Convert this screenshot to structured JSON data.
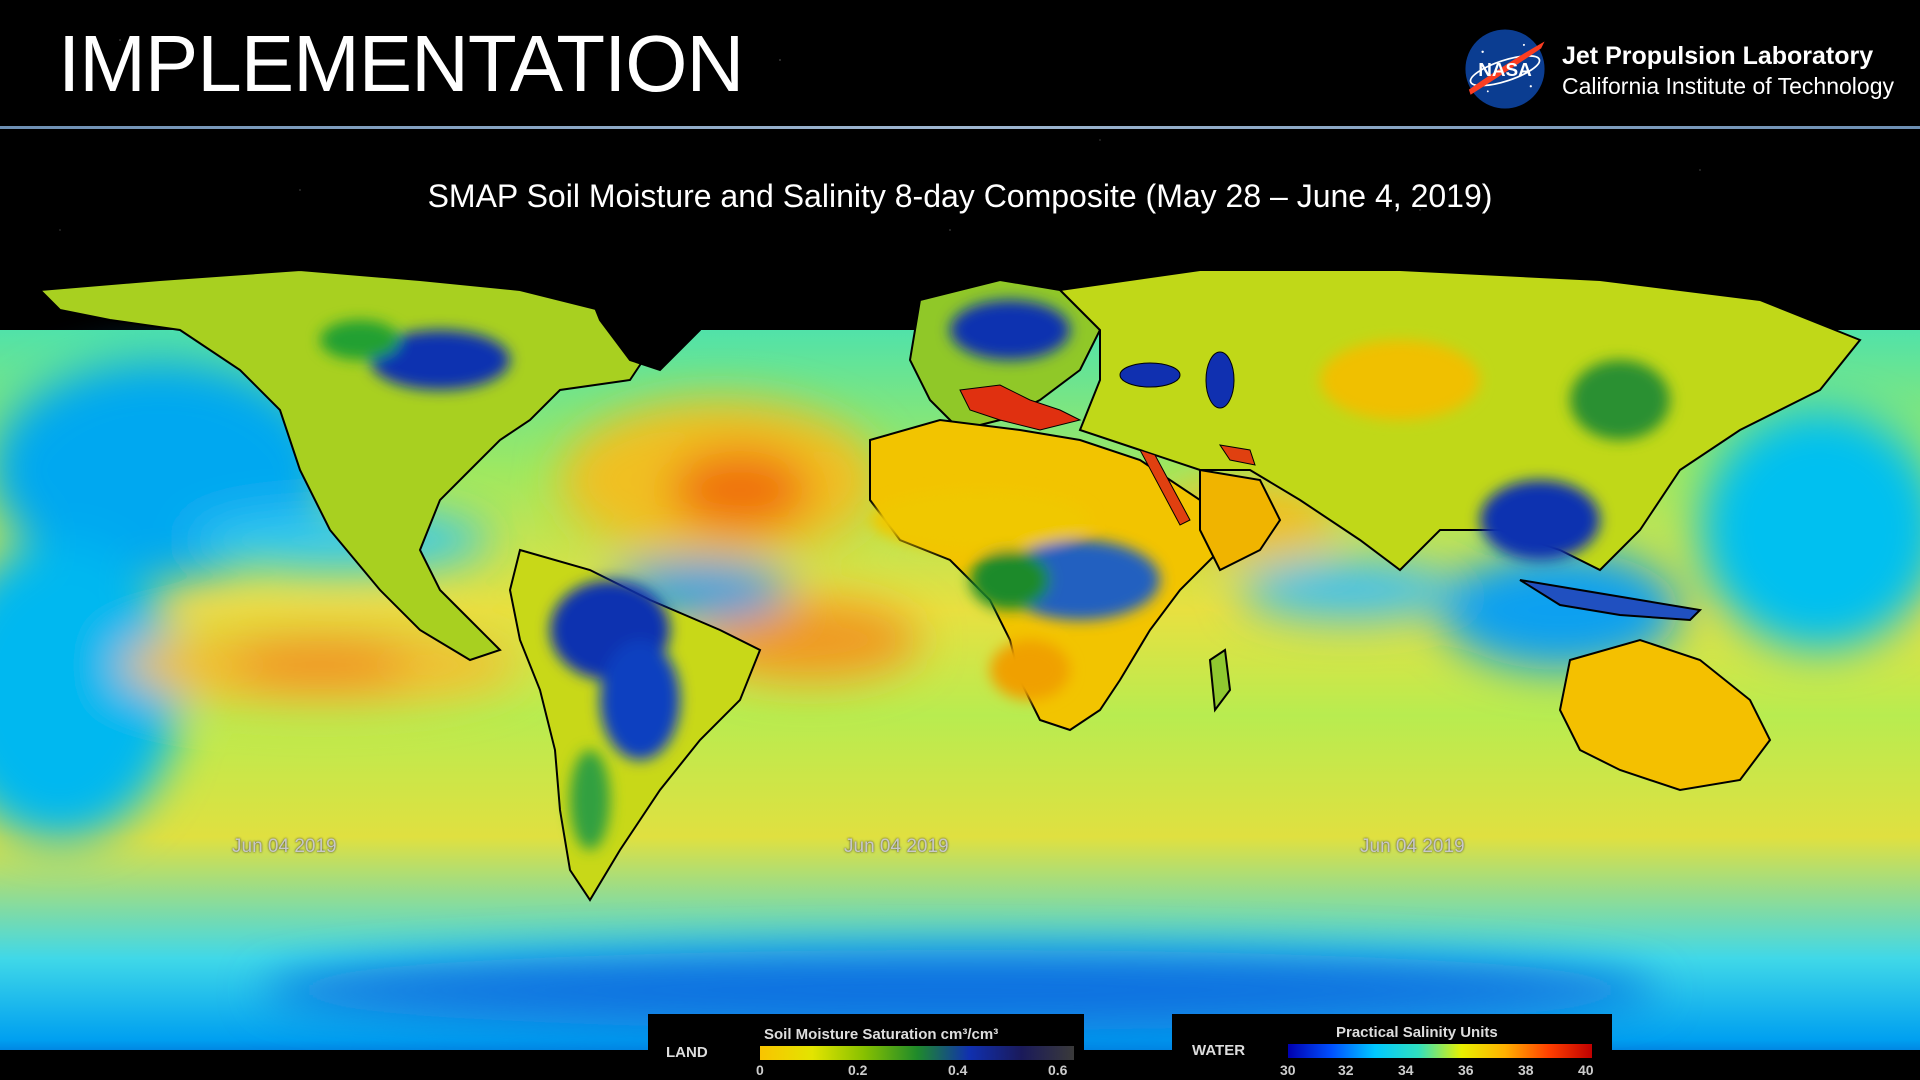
{
  "header": {
    "title": "IMPLEMENTATION",
    "org_line1": "Jet Propulsion Laboratory",
    "org_line2": "California Institute of Technology",
    "logo_text": "NASA"
  },
  "subtitle": "SMAP Soil Moisture and Salinity 8-day Composite (May 28 – June 4, 2019)",
  "map": {
    "date_labels": [
      "Jun 04 2019",
      "Jun 04 2019",
      "Jun 04 2019"
    ]
  },
  "legend_land": {
    "name": "LAND",
    "title": "Soil Moisture Saturation cm³/cm³",
    "ticks": [
      "0",
      "0.2",
      "0.4",
      "0.6"
    ],
    "colors": [
      "#f9c400",
      "#e3e400",
      "#86c000",
      "#1f8a2a",
      "#1030b0",
      "#1a1a5a",
      "#3a3a3a"
    ]
  },
  "legend_water": {
    "name": "WATER",
    "title": "Practical Salinity Units",
    "ticks": [
      "30",
      "32",
      "34",
      "36",
      "38",
      "40"
    ],
    "colors": [
      "#0000b0",
      "#0050ff",
      "#00c8ff",
      "#30e0c0",
      "#e8f000",
      "#ffb000",
      "#ff4000",
      "#c00000"
    ]
  },
  "colors": {
    "ocean_fresh": "#00b4f0",
    "ocean_mid": "#30e0c0",
    "ocean_saline": "#f0d000",
    "land_dry": "#f4c000",
    "land_wet": "#1030b0",
    "rule": "#9fb7d1"
  }
}
